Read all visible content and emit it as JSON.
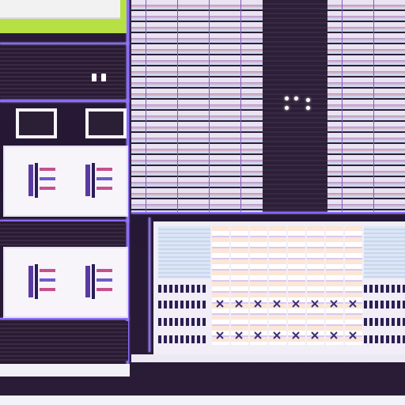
{
  "image": {
    "description_kind": "chip-micrograph",
    "colors": {
      "substrate": "#241733",
      "bus": "#8a6cff",
      "metal": "#f4f3fa",
      "highlight": "#b6e044",
      "array_pink": "#d2b3c4",
      "array_blue": "#cfd6ef"
    }
  }
}
